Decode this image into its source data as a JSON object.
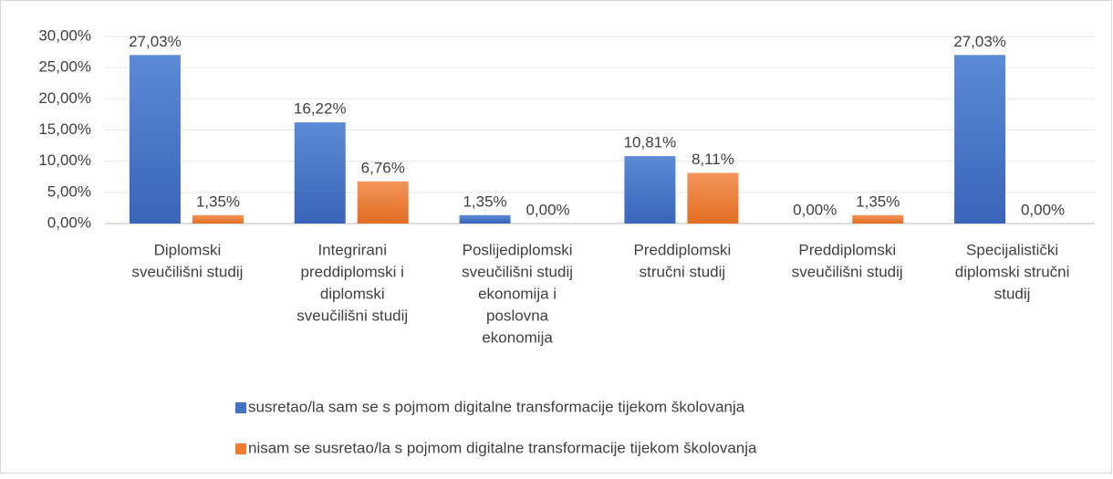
{
  "chart_data": {
    "type": "bar",
    "categories": [
      [
        "Diplomski",
        "sveučilišni studij"
      ],
      [
        "Integrirani",
        "preddiplomski i",
        "diplomski",
        "sveučilišni studij"
      ],
      [
        "Poslijediplomski",
        "sveučilišni studij",
        "ekonomija i",
        "poslovna",
        "ekonomija"
      ],
      [
        "Preddiplomski",
        "stručni studij"
      ],
      [
        "Preddiplomski",
        "sveučilišni studij"
      ],
      [
        "Specijalistički",
        "diplomski stručni",
        "studij"
      ]
    ],
    "series": [
      {
        "name": "susretao/la sam se s pojmom digitalne transformacije tijekom školovanja",
        "color": "#4472c4",
        "values": [
          27.03,
          16.22,
          1.35,
          10.81,
          0,
          27.03
        ],
        "value_labels": [
          "27,03%",
          "16,22%",
          "1,35%",
          "10,81%",
          "0,00%",
          "27,03%"
        ]
      },
      {
        "name": "nisam se susretao/la s pojmom digitalne transformacije tijekom školovanja",
        "color": "#ed7d31",
        "values": [
          1.35,
          6.76,
          0,
          8.11,
          1.35,
          0
        ],
        "value_labels": [
          "1,35%",
          "6,76%",
          "0,00%",
          "8,11%",
          "1,35%",
          "0,00%"
        ]
      }
    ],
    "ylim": [
      0,
      30
    ],
    "yticks": [
      {
        "value": 0,
        "label": "0,00%"
      },
      {
        "value": 5,
        "label": "5,00%"
      },
      {
        "value": 10,
        "label": "10,00%"
      },
      {
        "value": 15,
        "label": "15,00%"
      },
      {
        "value": 20,
        "label": "20,00%"
      },
      {
        "value": 25,
        "label": "25,00%"
      },
      {
        "value": 30,
        "label": "30,00%"
      }
    ],
    "grid": true,
    "legend": "bottom"
  }
}
